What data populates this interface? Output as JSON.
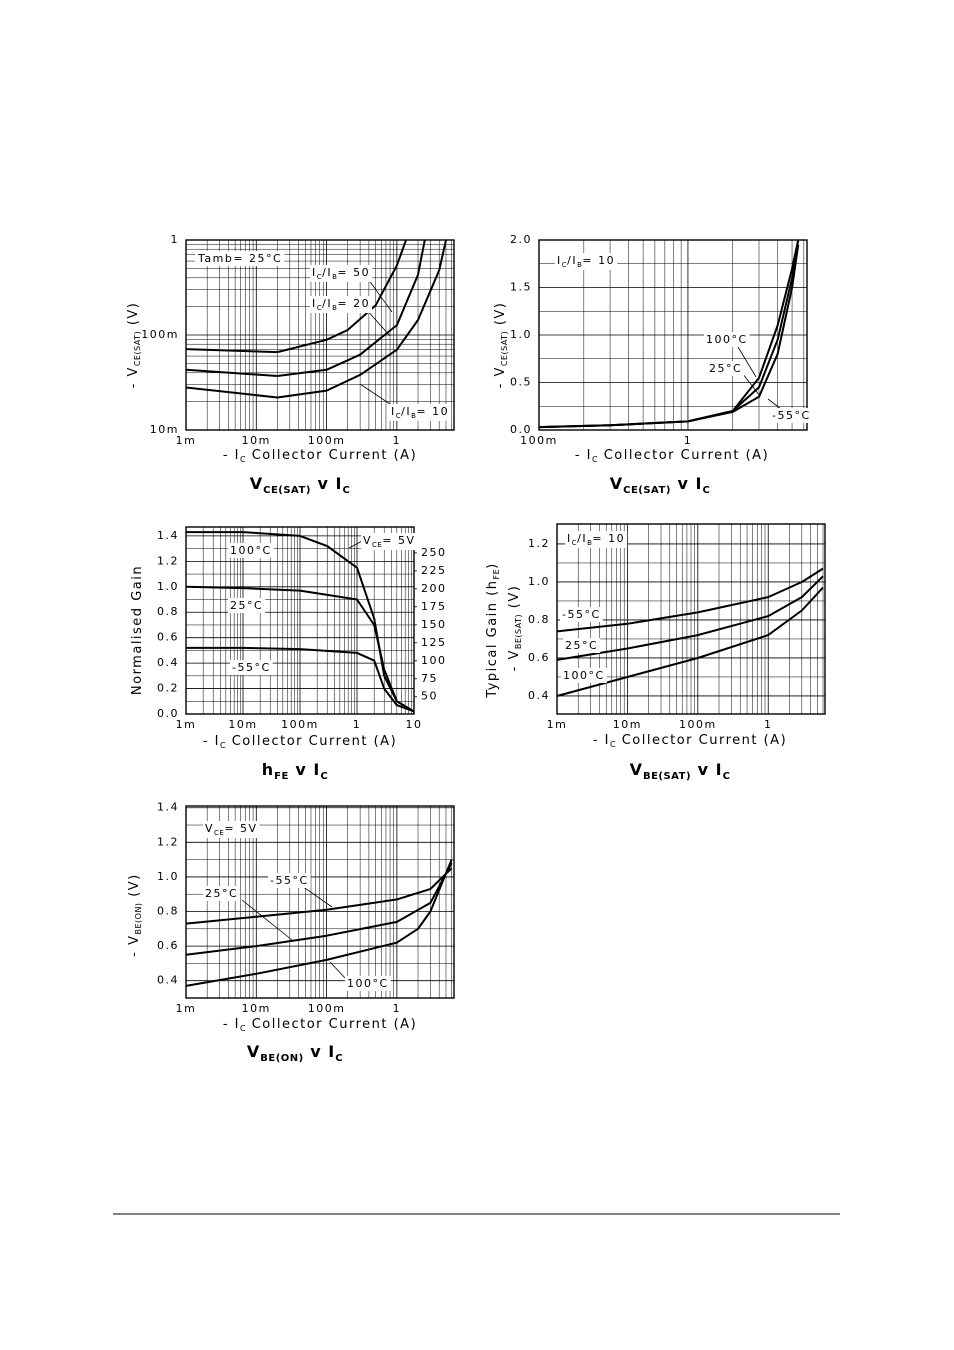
{
  "chart_data": [
    {
      "type": "line",
      "title": [
        "V",
        "CE(SAT)",
        " v I",
        "C"
      ],
      "x_label": [
        "- I",
        "C",
        "   Collector Current (A)"
      ],
      "y_label": [
        "- V",
        "CE(SAT)",
        "   (V)"
      ],
      "xscale": "log",
      "yscale": "log",
      "xlim": [
        0.001,
        6.5
      ],
      "ylim": [
        0.01,
        1
      ],
      "xticks": [
        {
          "value": 0.001,
          "label": "1m"
        },
        {
          "value": 0.01,
          "label": "10m"
        },
        {
          "value": 0.1,
          "label": "100m"
        },
        1
      ],
      "yticks": [
        {
          "value": 0.01,
          "label": "10m"
        },
        {
          "value": 0.1,
          "label": "100m"
        },
        1
      ],
      "grid": true,
      "x_minor": true,
      "y_minor": true,
      "color": "#000000",
      "series": [
        {
          "x": [
            0.001,
            0.02,
            0.1,
            0.2,
            0.5,
            1,
            1.35
          ],
          "values": [
            0.071,
            0.066,
            0.089,
            0.113,
            0.206,
            0.54,
            1.0
          ]
        },
        {
          "x": [
            0.001,
            0.02,
            0.1,
            0.3,
            1,
            2,
            2.5
          ],
          "values": [
            0.043,
            0.037,
            0.043,
            0.062,
            0.127,
            0.43,
            1.0
          ]
        },
        {
          "x": [
            0.001,
            0.02,
            0.1,
            0.3,
            1,
            2,
            4,
            5
          ],
          "values": [
            0.028,
            0.022,
            0.026,
            0.038,
            0.07,
            0.144,
            0.48,
            1.0
          ]
        }
      ],
      "annotations": [
        [
          "Tamb= 25°C"
        ],
        [
          "I",
          "C",
          "/I",
          "B",
          "= 50"
        ],
        [
          "I",
          "C",
          "/I",
          "B",
          "= 20"
        ],
        [
          "I",
          "C",
          "/I",
          "B",
          "= 10"
        ]
      ]
    },
    {
      "type": "line",
      "title": [
        "V",
        "CE(SAT)",
        " v I",
        "C"
      ],
      "x_label": [
        "- I",
        "C",
        "   Collector Current (A)"
      ],
      "y_label": [
        "- V",
        "CE(SAT)",
        "   (V)"
      ],
      "xscale": "log",
      "yscale": "linear",
      "xlim": [
        0.1,
        6.3
      ],
      "ylim": [
        0,
        2
      ],
      "xticks": [
        {
          "value": 0.1,
          "label": "100m"
        },
        1
      ],
      "yticks": [
        {
          "value": 0,
          "label": "0.0"
        },
        0.5,
        {
          "value": 1,
          "label": "1.0"
        },
        1.5,
        {
          "value": 2,
          "label": "2.0"
        }
      ],
      "grid": true,
      "x_minor": true,
      "y_minor": true,
      "color": "#000000",
      "series": [
        {
          "x": [
            0.1,
            0.3,
            1,
            2,
            3,
            4,
            5,
            5.5
          ],
          "values": [
            0.03,
            0.05,
            0.09,
            0.2,
            0.55,
            1.1,
            1.7,
            2.0
          ]
        },
        {
          "x": [
            0.1,
            0.3,
            1,
            2,
            3,
            4,
            5,
            5.5
          ],
          "values": [
            0.03,
            0.05,
            0.09,
            0.2,
            0.45,
            0.95,
            1.6,
            2.0
          ]
        },
        {
          "x": [
            0.1,
            0.3,
            1,
            2,
            3,
            4,
            5,
            5.5
          ],
          "values": [
            0.03,
            0.05,
            0.09,
            0.19,
            0.35,
            0.8,
            1.5,
            1.95
          ]
        }
      ],
      "annotations": [
        [
          "I",
          "C",
          "/I",
          "B",
          "= 10"
        ],
        [
          "100°C"
        ],
        [
          "25°C"
        ],
        [
          "-55°C"
        ]
      ]
    },
    {
      "type": "line",
      "title": [
        "h",
        "FE",
        " v I",
        "C"
      ],
      "x_label": [
        "- I",
        "C",
        "   Collector Current (A)"
      ],
      "y_label": [
        "Normalised Gain"
      ],
      "y2_label": [
        "Typical Gain (h",
        "FE",
        ")"
      ],
      "xscale": "log",
      "yscale": "linear",
      "xlim": [
        0.001,
        10
      ],
      "ylim": [
        0,
        1.47
      ],
      "y2lim": [
        26,
        286
      ],
      "xticks": [
        {
          "value": 0.001,
          "label": "1m"
        },
        {
          "value": 0.01,
          "label": "10m"
        },
        {
          "value": 0.1,
          "label": "100m"
        },
        1,
        10
      ],
      "yticks": [
        {
          "value": 0,
          "label": "0.0"
        },
        0.2,
        0.4,
        0.6,
        0.8,
        {
          "value": 1,
          "label": "1.0"
        },
        1.2,
        1.4
      ],
      "y2ticks": [
        50,
        75,
        100,
        125,
        150,
        175,
        200,
        225,
        250
      ],
      "grid": true,
      "x_minor": true,
      "y_minor": true,
      "color": "#000000",
      "series": [
        {
          "x": [
            0.001,
            0.01,
            0.1,
            0.3,
            1,
            2,
            3,
            5,
            10
          ],
          "values": [
            1.43,
            1.43,
            1.4,
            1.32,
            1.15,
            0.75,
            0.3,
            0.1,
            0.02
          ]
        },
        {
          "x": [
            0.001,
            0.01,
            0.1,
            1,
            2,
            3,
            5,
            10
          ],
          "values": [
            1.0,
            0.99,
            0.97,
            0.9,
            0.7,
            0.35,
            0.1,
            0.02
          ]
        },
        {
          "x": [
            0.001,
            0.01,
            0.1,
            1,
            2,
            3,
            5,
            10
          ],
          "values": [
            0.52,
            0.52,
            0.51,
            0.48,
            0.42,
            0.2,
            0.07,
            0.02
          ]
        }
      ],
      "annotations": [
        [
          "V",
          "CE",
          "= 5V"
        ],
        [
          "100°C"
        ],
        [
          "25°C"
        ],
        [
          "-55°C"
        ]
      ]
    },
    {
      "type": "line",
      "title": [
        "V",
        "BE(SAT)",
        " v I",
        "C"
      ],
      "x_label": [
        "- I",
        "C",
        "   Collector Current (A)"
      ],
      "y_label": [
        "- V",
        "BE(SAT)",
        "   (V)"
      ],
      "xscale": "log",
      "yscale": "linear",
      "xlim": [
        0.001,
        6.4
      ],
      "ylim": [
        0.305,
        1.305
      ],
      "xticks": [
        {
          "value": 0.001,
          "label": "1m"
        },
        {
          "value": 0.01,
          "label": "10m"
        },
        {
          "value": 0.1,
          "label": "100m"
        },
        1
      ],
      "yticks": [
        0.4,
        0.6,
        0.8,
        {
          "value": 1,
          "label": "1.0"
        },
        1.2
      ],
      "grid": true,
      "x_minor": true,
      "y_minor": true,
      "color": "#000000",
      "series": [
        {
          "x": [
            0.001,
            0.01,
            0.1,
            1,
            3,
            6
          ],
          "values": [
            0.74,
            0.78,
            0.84,
            0.92,
            1.0,
            1.07
          ]
        },
        {
          "x": [
            0.001,
            0.01,
            0.1,
            1,
            3,
            6
          ],
          "values": [
            0.59,
            0.65,
            0.72,
            0.82,
            0.92,
            1.03
          ]
        },
        {
          "x": [
            0.001,
            0.01,
            0.1,
            1,
            3,
            6
          ],
          "values": [
            0.4,
            0.5,
            0.6,
            0.72,
            0.85,
            0.97
          ]
        }
      ],
      "annotations": [
        [
          "I",
          "C",
          "/I",
          "B",
          "= 10"
        ],
        [
          "-55°C"
        ],
        [
          "25°C"
        ],
        [
          "100°C"
        ]
      ]
    },
    {
      "type": "line",
      "title": [
        "V",
        "BE(ON)",
        " v I",
        "C"
      ],
      "x_label": [
        "- I",
        "C",
        "   Collector Current (A)"
      ],
      "y_label": [
        "- V",
        "BE(ON)",
        "   (V)"
      ],
      "xscale": "log",
      "yscale": "linear",
      "xlim": [
        0.001,
        6.5
      ],
      "ylim": [
        0.3,
        1.41
      ],
      "xticks": [
        {
          "value": 0.001,
          "label": "1m"
        },
        {
          "value": 0.01,
          "label": "10m"
        },
        {
          "value": 0.1,
          "label": "100m"
        },
        1
      ],
      "yticks": [
        0.4,
        0.6,
        0.8,
        {
          "value": 1,
          "label": "1.0"
        },
        1.2,
        1.4
      ],
      "grid": true,
      "x_minor": true,
      "y_minor": true,
      "color": "#000000",
      "series": [
        {
          "x": [
            0.001,
            0.01,
            0.1,
            1,
            3,
            6
          ],
          "values": [
            0.73,
            0.77,
            0.81,
            0.87,
            0.93,
            1.05
          ]
        },
        {
          "x": [
            0.001,
            0.01,
            0.1,
            1,
            3,
            6
          ],
          "values": [
            0.55,
            0.6,
            0.66,
            0.74,
            0.85,
            1.08
          ]
        },
        {
          "x": [
            0.001,
            0.01,
            0.1,
            1,
            2,
            3,
            6
          ],
          "values": [
            0.37,
            0.44,
            0.52,
            0.62,
            0.7,
            0.8,
            1.1
          ]
        }
      ],
      "annotations": [
        [
          "V",
          "CE",
          "= 5V"
        ],
        [
          "-55°C"
        ],
        [
          "25°C"
        ],
        [
          "100°C"
        ]
      ]
    }
  ]
}
